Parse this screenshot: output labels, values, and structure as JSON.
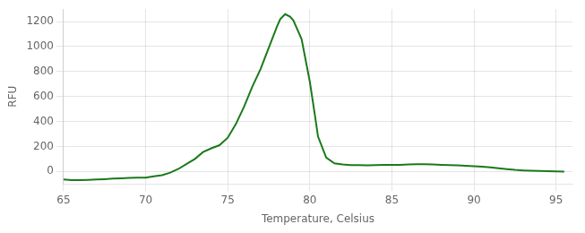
{
  "chart_data": {
    "type": "line",
    "xlabel": "Temperature, Celsius",
    "ylabel": "RFU",
    "color": "#1a7a1a",
    "grid": true,
    "xlim": [
      65,
      96
    ],
    "ylim": [
      -100,
      1300
    ],
    "xticks": [
      65,
      70,
      75,
      80,
      85,
      90,
      95
    ],
    "yticks": [
      0,
      200,
      400,
      600,
      800,
      1000,
      1200
    ],
    "x": [
      65.0,
      65.5,
      66.0,
      66.5,
      67.0,
      67.5,
      68.0,
      68.5,
      69.0,
      69.5,
      70.0,
      70.5,
      71.0,
      71.5,
      72.0,
      72.5,
      73.0,
      73.5,
      74.0,
      74.5,
      75.0,
      75.5,
      76.0,
      76.5,
      77.0,
      77.5,
      78.0,
      78.2,
      78.5,
      78.8,
      79.0,
      79.5,
      80.0,
      80.3,
      80.5,
      81.0,
      81.5,
      82.0,
      82.5,
      83.0,
      83.5,
      84.0,
      84.5,
      85.0,
      85.5,
      86.0,
      86.5,
      87.0,
      87.5,
      88.0,
      88.5,
      89.0,
      89.5,
      90.0,
      90.5,
      91.0,
      91.5,
      92.0,
      92.5,
      93.0,
      93.5,
      94.0,
      94.5,
      95.0,
      95.5
    ],
    "values": [
      -65,
      -70,
      -70,
      -68,
      -65,
      -62,
      -58,
      -55,
      -52,
      -50,
      -50,
      -40,
      -30,
      -10,
      20,
      60,
      100,
      155,
      185,
      210,
      270,
      380,
      520,
      680,
      820,
      990,
      1160,
      1220,
      1260,
      1240,
      1210,
      1060,
      720,
      460,
      280,
      110,
      65,
      55,
      50,
      50,
      48,
      50,
      52,
      52,
      52,
      55,
      57,
      58,
      55,
      52,
      50,
      48,
      45,
      42,
      38,
      32,
      25,
      18,
      12,
      8,
      5,
      3,
      2,
      0,
      -2
    ]
  }
}
